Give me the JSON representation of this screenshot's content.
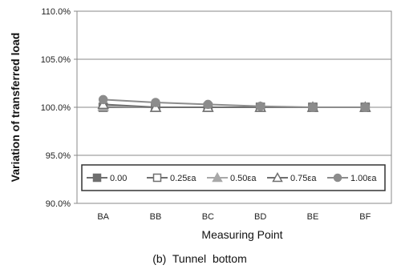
{
  "caption": "(b)  Tunnel  bottom",
  "chart_data": {
    "type": "line",
    "title": "",
    "xlabel": "Measuring Point",
    "ylabel": "Variation of transferred load",
    "categories": [
      "BA",
      "BB",
      "BC",
      "BD",
      "BE",
      "BF"
    ],
    "ylim": [
      90,
      110
    ],
    "yticks": [
      90,
      95,
      100,
      105,
      110
    ],
    "ytick_labels": [
      "90.0%",
      "95.0%",
      "100.0%",
      "105.0%",
      "110.0%"
    ],
    "grid": true,
    "legend_position": "bottom-inside",
    "series": [
      {
        "name": "0.00",
        "marker": "square-filled",
        "color": "#6f6f6f",
        "values": [
          100.0,
          100.0,
          100.0,
          100.0,
          100.0,
          100.0
        ]
      },
      {
        "name": "0.25εa",
        "marker": "square-open",
        "color": "#6f6f6f",
        "values": [
          100.0,
          100.0,
          100.0,
          100.0,
          100.0,
          100.0
        ]
      },
      {
        "name": "0.50εa",
        "marker": "triangle-filled",
        "color": "#a8a8a8",
        "values": [
          100.1,
          100.0,
          100.0,
          100.0,
          100.0,
          100.0
        ]
      },
      {
        "name": "0.75εa",
        "marker": "triangle-open",
        "color": "#6f6f6f",
        "values": [
          100.3,
          100.0,
          100.0,
          100.0,
          100.0,
          100.0
        ]
      },
      {
        "name": "1.00εa",
        "marker": "circle-filled",
        "color": "#8c8c8c",
        "values": [
          100.8,
          100.5,
          100.3,
          100.1,
          100.0,
          100.0
        ]
      }
    ]
  }
}
